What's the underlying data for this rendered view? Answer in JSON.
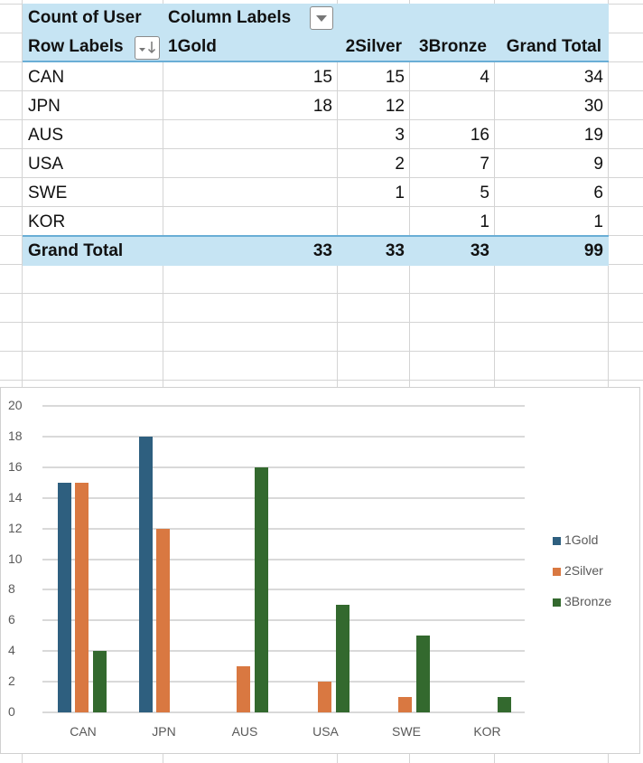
{
  "pivot": {
    "value_field": "Count of User",
    "column_labels": "Column Labels",
    "row_labels": "Row Labels",
    "columns": [
      "1Gold",
      "2Silver",
      "3Bronze",
      "Grand Total"
    ],
    "rows": [
      {
        "label": "CAN",
        "gold": "15",
        "silver": "15",
        "bronze": "4",
        "total": "34"
      },
      {
        "label": "JPN",
        "gold": "18",
        "silver": "12",
        "bronze": "",
        "total": "30"
      },
      {
        "label": "AUS",
        "gold": "",
        "silver": "3",
        "bronze": "16",
        "total": "19"
      },
      {
        "label": "USA",
        "gold": "",
        "silver": "2",
        "bronze": "7",
        "total": "9"
      },
      {
        "label": "SWE",
        "gold": "",
        "silver": "1",
        "bronze": "5",
        "total": "6"
      },
      {
        "label": "KOR",
        "gold": "",
        "silver": "",
        "bronze": "1",
        "total": "1"
      }
    ],
    "grand_total": {
      "label": "Grand Total",
      "gold": "33",
      "silver": "33",
      "bronze": "33",
      "total": "99"
    },
    "colors": {
      "header_bg": "#c6e4f3",
      "rule": "#6aaed6"
    }
  },
  "chart_data": {
    "type": "bar",
    "title": "",
    "xlabel": "",
    "ylabel": "",
    "categories": [
      "CAN",
      "JPN",
      "AUS",
      "USA",
      "SWE",
      "KOR"
    ],
    "series": [
      {
        "name": "1Gold",
        "color": "#2e5f7f",
        "values": [
          15,
          18,
          0,
          0,
          0,
          0
        ]
      },
      {
        "name": "2Silver",
        "color": "#d97841",
        "values": [
          15,
          12,
          3,
          2,
          1,
          0
        ]
      },
      {
        "name": "3Bronze",
        "color": "#33692e",
        "values": [
          4,
          0,
          16,
          7,
          5,
          1
        ]
      }
    ],
    "ylim": [
      0,
      20
    ],
    "yticks": [
      "0",
      "2",
      "4",
      "6",
      "8",
      "10",
      "12",
      "14",
      "16",
      "18",
      "20"
    ],
    "grid": true,
    "legend_position": "right"
  }
}
